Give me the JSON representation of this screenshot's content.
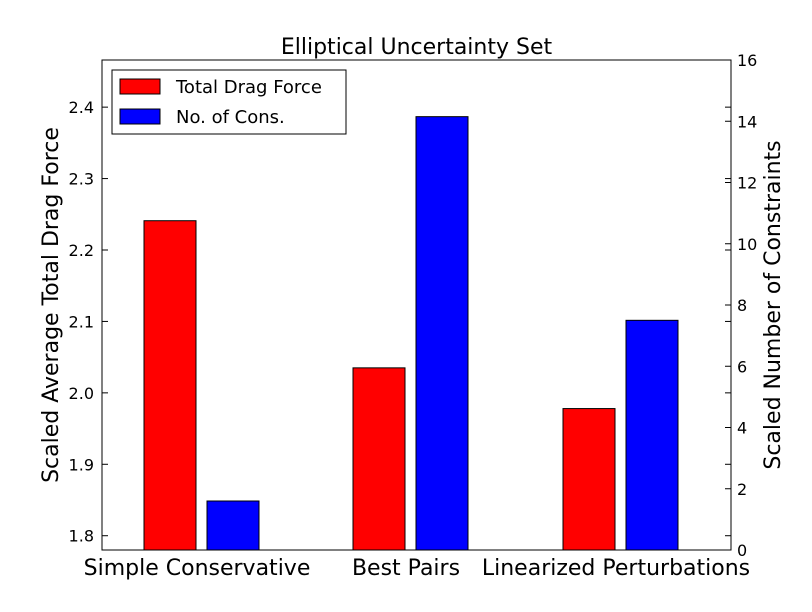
{
  "chart_data": {
    "type": "bar",
    "title": "Elliptical Uncertainty Set",
    "categories": [
      "Simple Conservative",
      "Best Pairs",
      "Linearized Perturbations"
    ],
    "series": [
      {
        "name": "Total Drag Force",
        "axis": "left",
        "color": "#ff0000",
        "values": [
          2.241,
          2.035,
          1.978
        ]
      },
      {
        "name": "No. of Cons.",
        "axis": "right",
        "color": "#0000ff",
        "values": [
          1.6,
          14.15,
          7.5
        ]
      }
    ],
    "ylabel_left": "Scaled Average Total Drag Force",
    "ylabel_right": "Scaled Number of Constraints",
    "ylim_left": [
      1.78,
      2.466
    ],
    "ylim_right": [
      0,
      16
    ],
    "yticks_left": [
      1.8,
      1.9,
      2.0,
      2.1,
      2.2,
      2.3,
      2.4
    ],
    "yticks_right": [
      0,
      2,
      4,
      6,
      8,
      10,
      12,
      14,
      16
    ],
    "yticklabels_left": [
      "1.8",
      "1.9",
      "2.0",
      "2.1",
      "2.2",
      "2.3",
      "2.4"
    ],
    "yticklabels_right": [
      "0",
      "2",
      "4",
      "6",
      "8",
      "10",
      "12",
      "14",
      "16"
    ],
    "legend_position": "top-left",
    "grid": false
  }
}
